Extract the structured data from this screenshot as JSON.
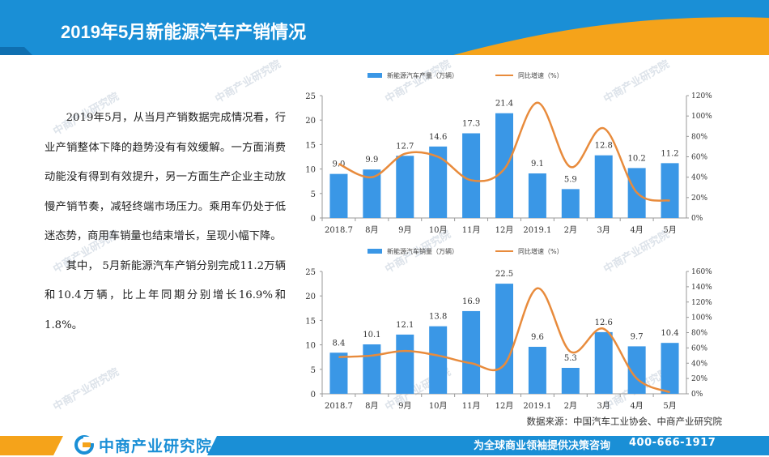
{
  "header": {
    "title": "2019年5月新能源汽车产销情况"
  },
  "text": {
    "paragraph1": "2019年5月，从当月产销数据完成情况看，行业产销整体下降的趋势没有有效缓解。一方面消费动能没有得到有效提升，另一方面生产企业主动放慢产销节奏，减轻终端市场压力。乘用车仍处于低迷态势，商用车销量也结束增长，呈现小幅下降。",
    "paragraph2": "其中，  5月新能源汽车产销分别完成11.2万辆和10.4万辆，比上年同期分别增长16.9%和1.8%。"
  },
  "source": "数据来源：中国汽车工业协会、中商产业研究院",
  "footer": {
    "brand": "中商产业研究院",
    "slogan": "为全球商业领袖提供决策咨询",
    "hotline": "400-666-1917"
  },
  "colors": {
    "bar": "#3a97e6",
    "line": "#e88b3c",
    "headerBlue": "#1a8fd6",
    "accentOrange": "#f5a31a"
  },
  "chart_data": [
    {
      "type": "bar",
      "categories": [
        "2018.7",
        "8月",
        "9月",
        "10月",
        "11月",
        "12月",
        "2019.1",
        "2月",
        "3月",
        "4月",
        "5月"
      ],
      "series": [
        {
          "name": "新能源汽车产量（万辆）",
          "values": [
            9.0,
            9.9,
            12.7,
            14.6,
            17.3,
            21.4,
            9.1,
            5.9,
            12.8,
            10.2,
            11.2
          ],
          "labels": [
            "9.0",
            "9.9",
            "12.7",
            "14.6",
            "17.3",
            "21.4",
            "9.1",
            "5.9",
            "12.8",
            "10.2",
            "11.2"
          ],
          "axis": "left",
          "kind": "bar"
        },
        {
          "name": "同比增速（%）",
          "values": [
            53,
            40,
            63,
            60,
            37,
            48,
            113,
            50,
            88,
            25,
            17
          ],
          "axis": "right",
          "kind": "line"
        }
      ],
      "ylim": [
        0,
        25
      ],
      "yticks": [
        "0",
        "5",
        "10",
        "15",
        "20",
        "25"
      ],
      "yticks_values": [
        0,
        5,
        10,
        15,
        20,
        25
      ],
      "y2lim": [
        0,
        120
      ],
      "y2ticks": [
        "0%",
        "20%",
        "40%",
        "60%",
        "80%",
        "100%",
        "120%"
      ],
      "y2ticks_values": [
        0,
        20,
        40,
        60,
        80,
        100,
        120
      ]
    },
    {
      "type": "bar",
      "categories": [
        "2018.7",
        "8月",
        "9月",
        "10月",
        "11月",
        "12月",
        "2019.1",
        "2月",
        "3月",
        "4月",
        "5月"
      ],
      "series": [
        {
          "name": "新能源汽车销量（万辆）",
          "values": [
            8.4,
            10.1,
            12.1,
            13.8,
            16.9,
            22.5,
            9.6,
            5.3,
            12.6,
            9.7,
            10.4
          ],
          "labels": [
            "8.4",
            "10.1",
            "12.1",
            "13.8",
            "16.9",
            "22.5",
            "9.6",
            "5.3",
            "12.6",
            "9.7",
            "10.4"
          ],
          "axis": "left",
          "kind": "bar"
        },
        {
          "name": "同比增速（%）",
          "values": [
            48,
            50,
            56,
            50,
            40,
            38,
            138,
            55,
            85,
            20,
            2
          ],
          "axis": "right",
          "kind": "line"
        }
      ],
      "ylim": [
        0,
        25
      ],
      "yticks": [
        "0",
        "5",
        "10",
        "15",
        "20",
        "25"
      ],
      "yticks_values": [
        0,
        5,
        10,
        15,
        20,
        25
      ],
      "y2lim": [
        0,
        160
      ],
      "y2ticks": [
        "0%",
        "20%",
        "40%",
        "60%",
        "80%",
        "100%",
        "120%",
        "140%",
        "160%"
      ],
      "y2ticks_values": [
        0,
        20,
        40,
        60,
        80,
        100,
        120,
        140,
        160
      ]
    }
  ]
}
